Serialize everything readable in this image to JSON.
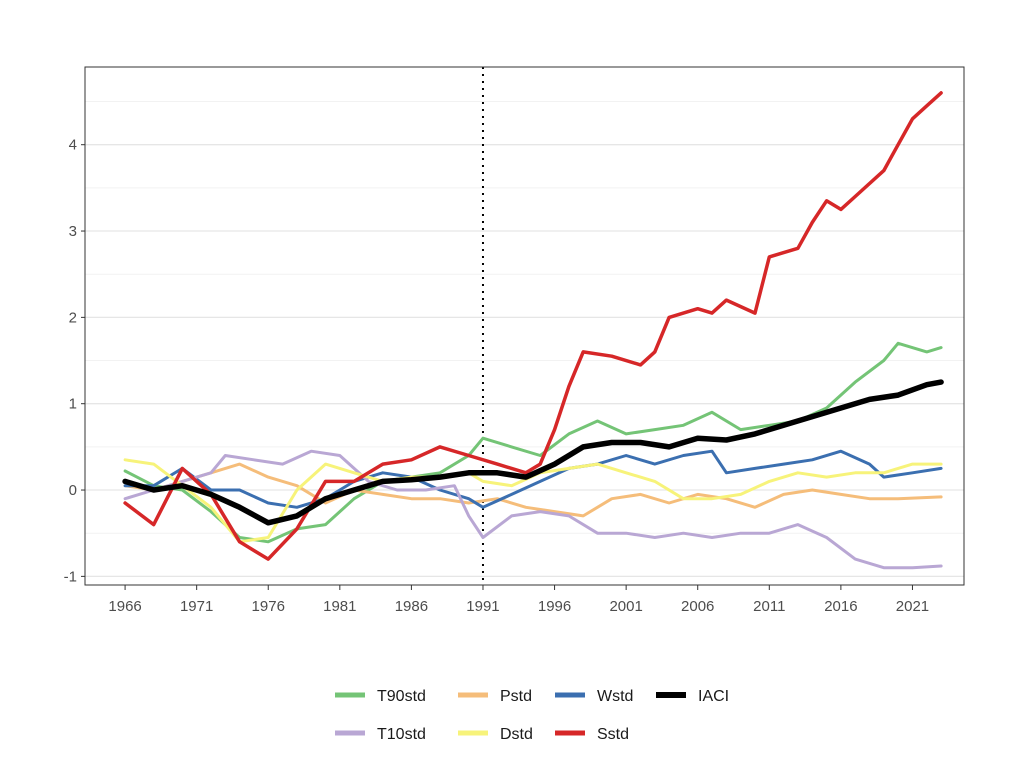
{
  "chart_data": {
    "type": "line",
    "xlabel": "",
    "ylabel": "",
    "xlim": [
      1966,
      2023
    ],
    "ylim": [
      -1.1,
      4.9
    ],
    "x_ticks": [
      "1966",
      "1971",
      "1976",
      "1981",
      "1986",
      "1991",
      "1996",
      "2001",
      "2006",
      "2011",
      "2016",
      "2021"
    ],
    "y_ticks": [
      "-1",
      "0",
      "1",
      "2",
      "3",
      "4"
    ],
    "grid": true,
    "reference_line": {
      "x": 1991,
      "style": "dotted"
    },
    "legend_position": "bottom",
    "series": [
      {
        "name": "T90std",
        "color": "#74c476",
        "width": 3,
        "points": [
          [
            1966,
            0.22
          ],
          [
            1968,
            0.05
          ],
          [
            1970,
            0.0
          ],
          [
            1972,
            -0.25
          ],
          [
            1974,
            -0.55
          ],
          [
            1976,
            -0.6
          ],
          [
            1978,
            -0.45
          ],
          [
            1980,
            -0.4
          ],
          [
            1982,
            -0.1
          ],
          [
            1984,
            0.1
          ],
          [
            1986,
            0.15
          ],
          [
            1988,
            0.2
          ],
          [
            1990,
            0.4
          ],
          [
            1991,
            0.6
          ],
          [
            1993,
            0.5
          ],
          [
            1995,
            0.4
          ],
          [
            1997,
            0.65
          ],
          [
            1999,
            0.8
          ],
          [
            2001,
            0.65
          ],
          [
            2003,
            0.7
          ],
          [
            2005,
            0.75
          ],
          [
            2007,
            0.9
          ],
          [
            2009,
            0.7
          ],
          [
            2011,
            0.75
          ],
          [
            2013,
            0.8
          ],
          [
            2015,
            0.95
          ],
          [
            2017,
            1.25
          ],
          [
            2019,
            1.5
          ],
          [
            2020,
            1.7
          ],
          [
            2022,
            1.6
          ],
          [
            2023,
            1.65
          ]
        ]
      },
      {
        "name": "Pstd",
        "color": "#f5bd7a",
        "width": 3,
        "points": [
          [
            1966,
            0.05
          ],
          [
            1968,
            0.0
          ],
          [
            1970,
            0.1
          ],
          [
            1972,
            0.2
          ],
          [
            1974,
            0.3
          ],
          [
            1976,
            0.15
          ],
          [
            1978,
            0.05
          ],
          [
            1980,
            -0.15
          ],
          [
            1982,
            0.0
          ],
          [
            1984,
            -0.05
          ],
          [
            1986,
            -0.1
          ],
          [
            1988,
            -0.1
          ],
          [
            1990,
            -0.15
          ],
          [
            1992,
            -0.1
          ],
          [
            1994,
            -0.2
          ],
          [
            1996,
            -0.25
          ],
          [
            1998,
            -0.3
          ],
          [
            2000,
            -0.1
          ],
          [
            2002,
            -0.05
          ],
          [
            2004,
            -0.15
          ],
          [
            2006,
            -0.05
          ],
          [
            2008,
            -0.1
          ],
          [
            2010,
            -0.2
          ],
          [
            2012,
            -0.05
          ],
          [
            2014,
            0.0
          ],
          [
            2016,
            -0.05
          ],
          [
            2018,
            -0.1
          ],
          [
            2020,
            -0.1
          ],
          [
            2023,
            -0.08
          ]
        ]
      },
      {
        "name": "Wstd",
        "color": "#3b6fb0",
        "width": 3,
        "points": [
          [
            1966,
            0.05
          ],
          [
            1968,
            0.05
          ],
          [
            1970,
            0.25
          ],
          [
            1972,
            0.0
          ],
          [
            1974,
            0.0
          ],
          [
            1976,
            -0.15
          ],
          [
            1978,
            -0.2
          ],
          [
            1980,
            -0.1
          ],
          [
            1982,
            0.1
          ],
          [
            1984,
            0.2
          ],
          [
            1986,
            0.15
          ],
          [
            1988,
            0.0
          ],
          [
            1990,
            -0.1
          ],
          [
            1991,
            -0.2
          ],
          [
            1993,
            -0.05
          ],
          [
            1995,
            0.1
          ],
          [
            1997,
            0.25
          ],
          [
            1999,
            0.3
          ],
          [
            2001,
            0.4
          ],
          [
            2003,
            0.3
          ],
          [
            2005,
            0.4
          ],
          [
            2007,
            0.45
          ],
          [
            2008,
            0.2
          ],
          [
            2010,
            0.25
          ],
          [
            2012,
            0.3
          ],
          [
            2014,
            0.35
          ],
          [
            2016,
            0.45
          ],
          [
            2018,
            0.3
          ],
          [
            2019,
            0.15
          ],
          [
            2021,
            0.2
          ],
          [
            2023,
            0.25
          ]
        ]
      },
      {
        "name": "T10std",
        "color": "#b9a7d4",
        "width": 3,
        "points": [
          [
            1966,
            -0.1
          ],
          [
            1968,
            0.0
          ],
          [
            1970,
            0.1
          ],
          [
            1972,
            0.2
          ],
          [
            1973,
            0.4
          ],
          [
            1975,
            0.35
          ],
          [
            1977,
            0.3
          ],
          [
            1979,
            0.45
          ],
          [
            1981,
            0.4
          ],
          [
            1983,
            0.1
          ],
          [
            1985,
            0.0
          ],
          [
            1987,
            0.0
          ],
          [
            1989,
            0.05
          ],
          [
            1990,
            -0.3
          ],
          [
            1991,
            -0.55
          ],
          [
            1993,
            -0.3
          ],
          [
            1995,
            -0.25
          ],
          [
            1997,
            -0.3
          ],
          [
            1999,
            -0.5
          ],
          [
            2001,
            -0.5
          ],
          [
            2003,
            -0.55
          ],
          [
            2005,
            -0.5
          ],
          [
            2007,
            -0.55
          ],
          [
            2009,
            -0.5
          ],
          [
            2011,
            -0.5
          ],
          [
            2013,
            -0.4
          ],
          [
            2015,
            -0.55
          ],
          [
            2017,
            -0.8
          ],
          [
            2019,
            -0.9
          ],
          [
            2021,
            -0.9
          ],
          [
            2023,
            -0.88
          ]
        ]
      },
      {
        "name": "Dstd",
        "color": "#f7f37a",
        "width": 3,
        "points": [
          [
            1966,
            0.35
          ],
          [
            1968,
            0.3
          ],
          [
            1970,
            0.05
          ],
          [
            1972,
            -0.2
          ],
          [
            1974,
            -0.6
          ],
          [
            1976,
            -0.55
          ],
          [
            1978,
            0.0
          ],
          [
            1980,
            0.3
          ],
          [
            1982,
            0.2
          ],
          [
            1984,
            0.1
          ],
          [
            1986,
            0.15
          ],
          [
            1988,
            0.15
          ],
          [
            1990,
            0.2
          ],
          [
            1991,
            0.1
          ],
          [
            1993,
            0.05
          ],
          [
            1995,
            0.2
          ],
          [
            1997,
            0.25
          ],
          [
            1999,
            0.3
          ],
          [
            2001,
            0.2
          ],
          [
            2003,
            0.1
          ],
          [
            2005,
            -0.1
          ],
          [
            2007,
            -0.1
          ],
          [
            2009,
            -0.05
          ],
          [
            2011,
            0.1
          ],
          [
            2013,
            0.2
          ],
          [
            2015,
            0.15
          ],
          [
            2017,
            0.2
          ],
          [
            2019,
            0.2
          ],
          [
            2021,
            0.3
          ],
          [
            2023,
            0.3
          ]
        ]
      },
      {
        "name": "Sstd",
        "color": "#d62728",
        "width": 3.5,
        "points": [
          [
            1966,
            -0.15
          ],
          [
            1968,
            -0.4
          ],
          [
            1970,
            0.25
          ],
          [
            1972,
            -0.05
          ],
          [
            1974,
            -0.6
          ],
          [
            1975,
            -0.7
          ],
          [
            1976,
            -0.8
          ],
          [
            1978,
            -0.45
          ],
          [
            1980,
            0.1
          ],
          [
            1982,
            0.1
          ],
          [
            1984,
            0.3
          ],
          [
            1986,
            0.35
          ],
          [
            1988,
            0.5
          ],
          [
            1990,
            0.4
          ],
          [
            1992,
            0.3
          ],
          [
            1994,
            0.2
          ],
          [
            1995,
            0.3
          ],
          [
            1996,
            0.7
          ],
          [
            1997,
            1.2
          ],
          [
            1998,
            1.6
          ],
          [
            2000,
            1.55
          ],
          [
            2002,
            1.45
          ],
          [
            2003,
            1.6
          ],
          [
            2004,
            2.0
          ],
          [
            2006,
            2.1
          ],
          [
            2007,
            2.05
          ],
          [
            2008,
            2.2
          ],
          [
            2010,
            2.05
          ],
          [
            2011,
            2.7
          ],
          [
            2013,
            2.8
          ],
          [
            2014,
            3.1
          ],
          [
            2015,
            3.35
          ],
          [
            2016,
            3.25
          ],
          [
            2017,
            3.4
          ],
          [
            2019,
            3.7
          ],
          [
            2020,
            4.0
          ],
          [
            2021,
            4.3
          ],
          [
            2022,
            4.45
          ],
          [
            2023,
            4.6
          ]
        ]
      },
      {
        "name": "IACI",
        "color": "#000000",
        "width": 5.5,
        "points": [
          [
            1966,
            0.1
          ],
          [
            1968,
            0.0
          ],
          [
            1970,
            0.05
          ],
          [
            1972,
            -0.05
          ],
          [
            1974,
            -0.2
          ],
          [
            1976,
            -0.38
          ],
          [
            1978,
            -0.3
          ],
          [
            1980,
            -0.1
          ],
          [
            1982,
            0.0
          ],
          [
            1984,
            0.1
          ],
          [
            1986,
            0.12
          ],
          [
            1988,
            0.15
          ],
          [
            1990,
            0.2
          ],
          [
            1992,
            0.2
          ],
          [
            1994,
            0.15
          ],
          [
            1996,
            0.3
          ],
          [
            1998,
            0.5
          ],
          [
            2000,
            0.55
          ],
          [
            2002,
            0.55
          ],
          [
            2004,
            0.5
          ],
          [
            2006,
            0.6
          ],
          [
            2008,
            0.58
          ],
          [
            2010,
            0.65
          ],
          [
            2012,
            0.75
          ],
          [
            2014,
            0.85
          ],
          [
            2016,
            0.95
          ],
          [
            2018,
            1.05
          ],
          [
            2020,
            1.1
          ],
          [
            2022,
            1.22
          ],
          [
            2023,
            1.25
          ]
        ]
      }
    ],
    "legend": [
      {
        "name": "T90std",
        "color": "#74c476",
        "width": 5
      },
      {
        "name": "Pstd",
        "color": "#f5bd7a",
        "width": 5
      },
      {
        "name": "Wstd",
        "color": "#3b6fb0",
        "width": 5
      },
      {
        "name": "IACI",
        "color": "#000000",
        "width": 6
      },
      {
        "name": "T10std",
        "color": "#b9a7d4",
        "width": 5
      },
      {
        "name": "Dstd",
        "color": "#f7f37a",
        "width": 5
      },
      {
        "name": "Sstd",
        "color": "#d62728",
        "width": 5
      }
    ]
  }
}
